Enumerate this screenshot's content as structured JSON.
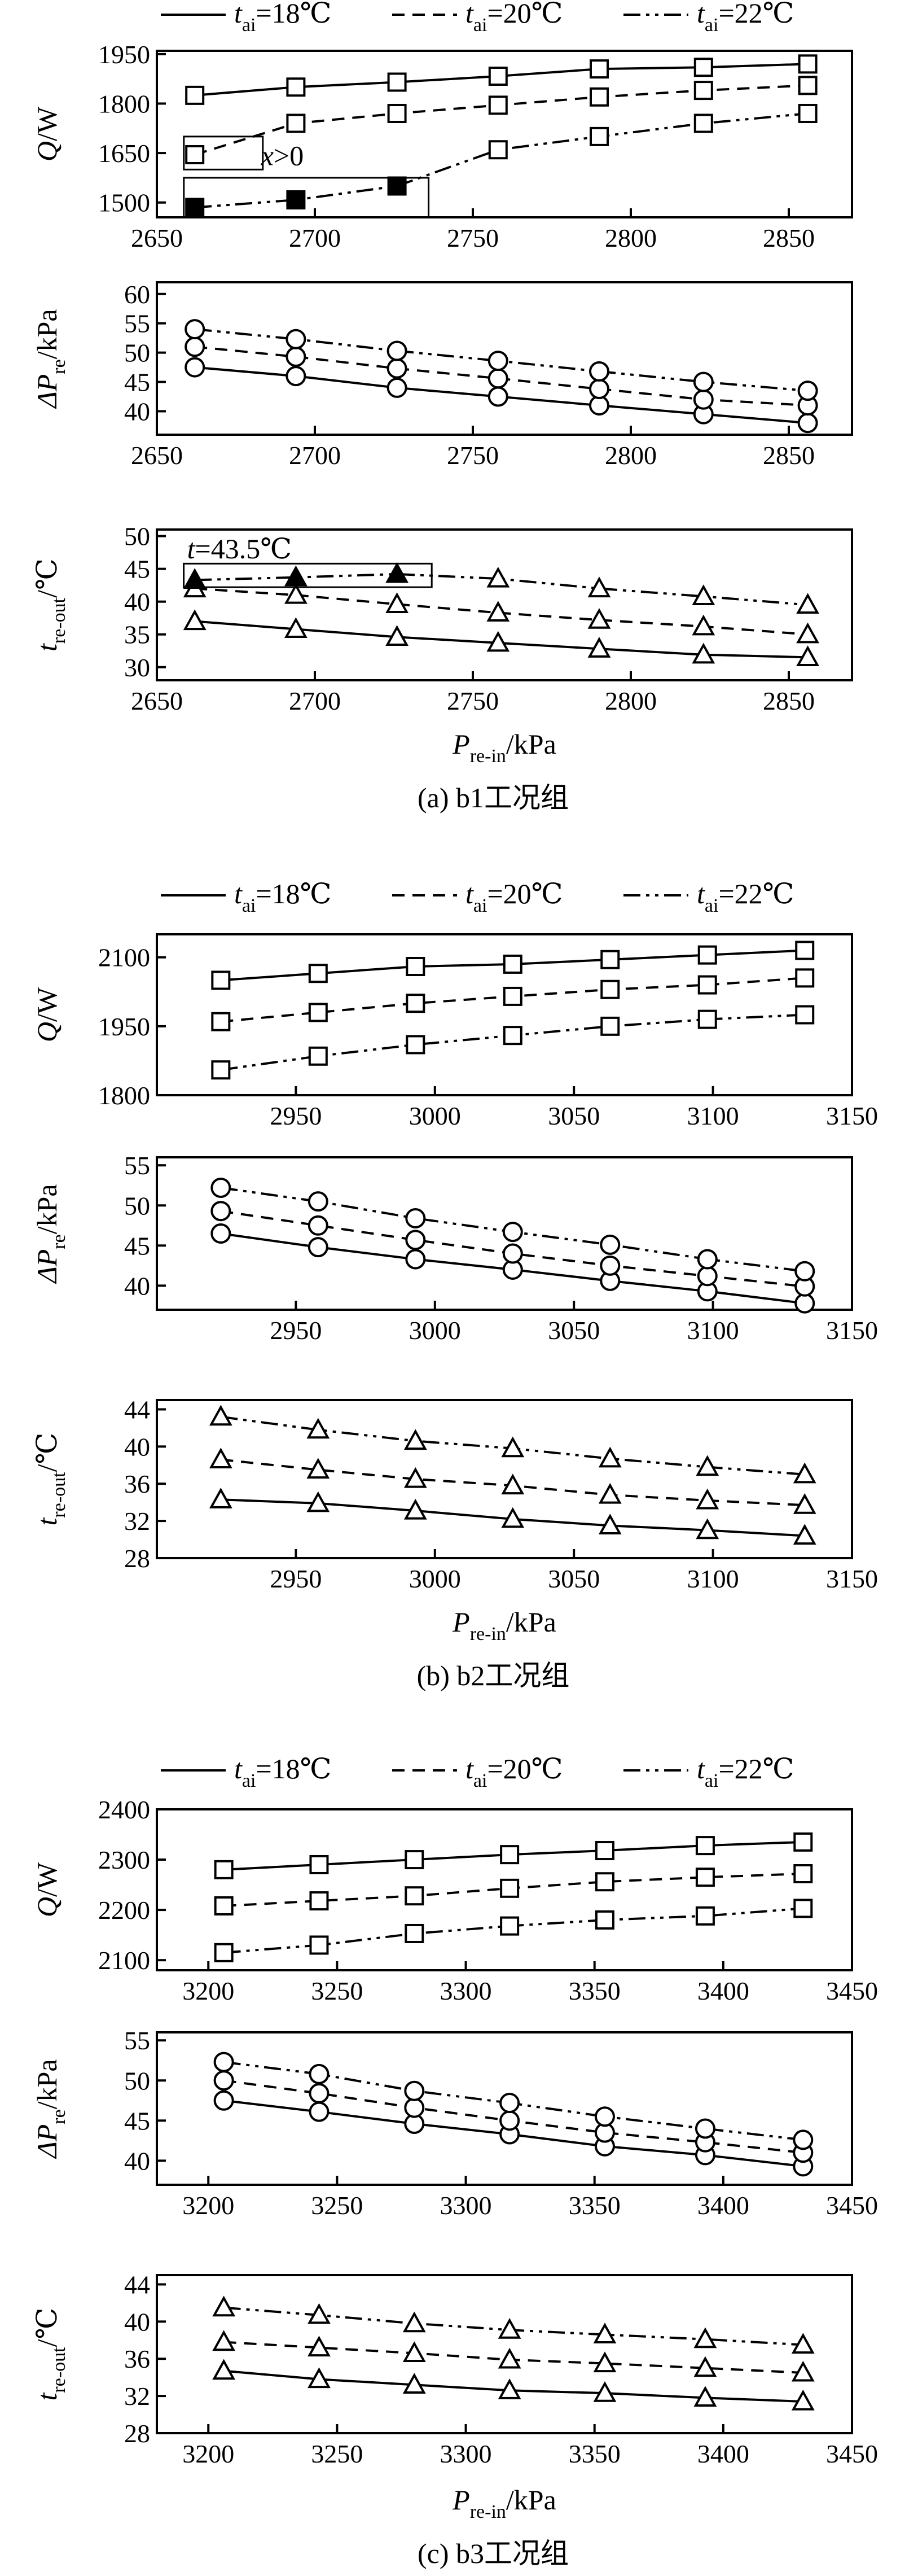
{
  "legend": [
    {
      "pre": "t",
      "sub": "ai",
      "post": "=18℃",
      "dash": "solid"
    },
    {
      "pre": "t",
      "sub": "ai",
      "post": "=20℃",
      "dash": "dashed"
    },
    {
      "pre": "t",
      "sub": "ai",
      "post": "=22℃",
      "dash": "dashdot"
    }
  ],
  "groups": [
    {
      "caption": "(a) b1工况组",
      "xlabel": {
        "pre": "P",
        "sub": "re-in",
        "post": "/kPa"
      },
      "xlim": [
        2650,
        2870
      ],
      "xticks": [
        2650,
        2700,
        2750,
        2800,
        2850
      ],
      "x": [
        2662,
        2694,
        2726,
        2758,
        2790,
        2823,
        2856
      ],
      "panels": [
        {
          "ylabel": {
            "pre": "Q",
            "sub": "",
            "post": "/W"
          },
          "marker": "square",
          "ylim": [
            1455,
            1960
          ],
          "yticks": [
            1500,
            1650,
            1800,
            1950
          ],
          "series": [
            [
              1825,
              1850,
              1865,
              1883,
              1905,
              1910,
              1920
            ],
            [
              1645,
              1740,
              1770,
              1795,
              1820,
              1840,
              1855
            ],
            [
              1485,
              1508,
              1550,
              1660,
              1700,
              1740,
              1770
            ]
          ],
          "filled": [
            [],
            [],
            [
              0,
              1,
              2
            ]
          ],
          "annotation": {
            "text_pre": "x",
            "text_post": ">0",
            "value_x": 2700,
            "value_y": 1600
          }
        },
        {
          "ylabel": {
            "pre": "ΔP",
            "sub": "re",
            "post": "/kPa"
          },
          "marker": "circle",
          "ylim": [
            36,
            62
          ],
          "yticks": [
            40,
            45,
            50,
            55,
            60
          ],
          "series": [
            [
              47.5,
              46,
              44,
              42.5,
              41,
              39.5,
              38
            ],
            [
              51,
              49.3,
              47.3,
              45.6,
              43.8,
              42,
              41
            ],
            [
              54,
              52.3,
              50.3,
              48.6,
              46.8,
              45,
              43.5
            ]
          ],
          "filled": [
            [],
            [],
            []
          ]
        },
        {
          "ylabel": {
            "pre": "t",
            "sub": "re-out",
            "post": "/℃"
          },
          "marker": "triangle",
          "ylim": [
            28,
            51
          ],
          "yticks": [
            30,
            35,
            40,
            45,
            50
          ],
          "series": [
            [
              37,
              35.8,
              34.6,
              33.7,
              32.8,
              31.9,
              31.5
            ],
            [
              42,
              41,
              39.6,
              38.3,
              37.2,
              36.2,
              35
            ],
            [
              43.3,
              43.7,
              44.2,
              43.5,
              42,
              40.8,
              39.5
            ]
          ],
          "filled": [
            [],
            [],
            [
              0,
              1,
              2
            ]
          ],
          "annotation": {
            "text_pre": "t",
            "text_post": "=43.5℃",
            "value_x": 2662,
            "value_y": 48
          }
        }
      ]
    },
    {
      "caption": "(b) b2工况组",
      "xlabel": {
        "pre": "P",
        "sub": "re-in",
        "post": "/kPa"
      },
      "xlim": [
        2900,
        3150
      ],
      "xticks": [
        2950,
        3000,
        3050,
        3100,
        3150
      ],
      "x": [
        2923,
        2958,
        2993,
        3028,
        3063,
        3098,
        3133
      ],
      "panels": [
        {
          "ylabel": {
            "pre": "Q",
            "sub": "",
            "post": "/W"
          },
          "marker": "square",
          "ylim": [
            1800,
            2150
          ],
          "yticks": [
            1800,
            1950,
            2100
          ],
          "series": [
            [
              2050,
              2065,
              2080,
              2085,
              2095,
              2105,
              2115
            ],
            [
              1960,
              1980,
              2000,
              2015,
              2030,
              2040,
              2055
            ],
            [
              1855,
              1885,
              1910,
              1930,
              1950,
              1965,
              1975
            ]
          ],
          "filled": [
            [],
            [],
            []
          ]
        },
        {
          "ylabel": {
            "pre": "ΔP",
            "sub": "re",
            "post": "/kPa"
          },
          "marker": "circle",
          "ylim": [
            37,
            56
          ],
          "yticks": [
            40,
            45,
            50,
            55
          ],
          "series": [
            [
              46.5,
              44.8,
              43.3,
              42,
              40.6,
              39.3,
              37.8
            ],
            [
              49.3,
              47.5,
              45.7,
              44,
              42.5,
              41.2,
              39.9
            ],
            [
              52.2,
              50.5,
              48.4,
              46.7,
              45.1,
              43.3,
              41.8
            ]
          ],
          "filled": [
            [],
            [],
            []
          ]
        },
        {
          "ylabel": {
            "pre": "t",
            "sub": "re-out",
            "post": "/℃"
          },
          "marker": "triangle",
          "ylim": [
            28,
            45
          ],
          "yticks": [
            28,
            32,
            36,
            40,
            44
          ],
          "series": [
            [
              34.3,
              33.9,
              33.1,
              32.2,
              31.5,
              31,
              30.4
            ],
            [
              38.6,
              37.5,
              36.5,
              35.8,
              34.8,
              34.2,
              33.7
            ],
            [
              43.2,
              41.8,
              40.6,
              39.8,
              38.7,
              37.8,
              37
            ]
          ],
          "filled": [
            [],
            [],
            []
          ]
        }
      ]
    },
    {
      "caption": "(c) b3工况组",
      "xlabel": {
        "pre": "P",
        "sub": "re-in",
        "post": "/kPa"
      },
      "xlim": [
        3180,
        3450
      ],
      "xticks": [
        3200,
        3250,
        3300,
        3350,
        3400,
        3450
      ],
      "x": [
        3206,
        3243,
        3280,
        3317,
        3354,
        3393,
        3431
      ],
      "panels": [
        {
          "ylabel": {
            "pre": "Q",
            "sub": "",
            "post": "/W"
          },
          "marker": "square",
          "ylim": [
            2080,
            2400
          ],
          "yticks": [
            2100,
            2200,
            2300,
            2400
          ],
          "series": [
            [
              2280,
              2290,
              2300,
              2310,
              2318,
              2328,
              2335
            ],
            [
              2208,
              2218,
              2228,
              2243,
              2256,
              2265,
              2272
            ],
            [
              2115,
              2130,
              2153,
              2168,
              2180,
              2188,
              2203
            ]
          ],
          "filled": [
            [],
            [],
            []
          ]
        },
        {
          "ylabel": {
            "pre": "ΔP",
            "sub": "re",
            "post": "/kPa"
          },
          "marker": "circle",
          "ylim": [
            37,
            56
          ],
          "yticks": [
            40,
            45,
            50,
            55
          ],
          "series": [
            [
              47.5,
              46.1,
              44.6,
              43.3,
              41.8,
              40.7,
              39.3
            ],
            [
              50,
              48.4,
              46.6,
              45,
              43.5,
              42.3,
              41
            ],
            [
              52.3,
              50.8,
              48.7,
              47.2,
              45.5,
              44,
              42.6
            ]
          ],
          "filled": [
            [],
            [],
            []
          ]
        },
        {
          "ylabel": {
            "pre": "t",
            "sub": "re-out",
            "post": "/℃"
          },
          "marker": "triangle",
          "ylim": [
            28,
            45
          ],
          "yticks": [
            28,
            32,
            36,
            40,
            44
          ],
          "series": [
            [
              34.7,
              33.8,
              33.2,
              32.6,
              32.3,
              31.8,
              31.4
            ],
            [
              37.8,
              37.2,
              36.6,
              35.9,
              35.5,
              35,
              34.5
            ],
            [
              41.5,
              40.7,
              39.8,
              39.1,
              38.6,
              38.1,
              37.5
            ]
          ],
          "filled": [
            [],
            [],
            []
          ]
        }
      ]
    }
  ]
}
